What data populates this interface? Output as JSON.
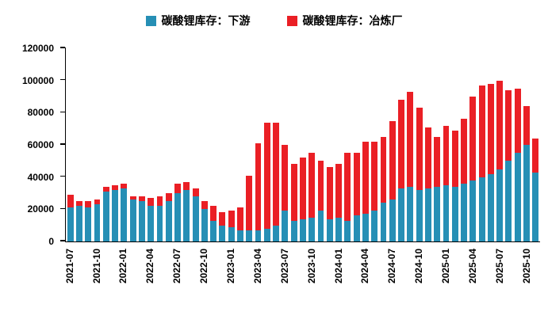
{
  "chart_data": {
    "type": "bar",
    "stacked": true,
    "title": "",
    "xlabel": "",
    "ylabel": "",
    "grid": false,
    "legend_position": "top",
    "ylim": [
      0,
      120000
    ],
    "yticks": [
      0,
      20000,
      40000,
      60000,
      80000,
      100000,
      120000
    ],
    "label_every": 3,
    "categories": [
      "2021-07",
      "2021-08",
      "2021-09",
      "2021-10",
      "2021-11",
      "2021-12",
      "2022-01",
      "2022-02",
      "2022-03",
      "2022-04",
      "2022-05",
      "2022-06",
      "2022-07",
      "2022-08",
      "2022-09",
      "2022-10",
      "2022-11",
      "2022-12",
      "2023-01",
      "2023-02",
      "2023-03",
      "2023-04",
      "2023-05",
      "2023-06",
      "2023-07",
      "2023-08",
      "2023-09",
      "2023-10",
      "2023-11",
      "2023-12",
      "2024-01",
      "2024-02",
      "2024-03",
      "2024-04",
      "2024-05",
      "2024-06",
      "2024-07",
      "2024-08",
      "2024-09",
      "2024-10",
      "2024-11",
      "2024-12",
      "2025-01",
      "2025-02",
      "2025-03",
      "2025-04",
      "2025-05",
      "2025-06",
      "2025-07",
      "2025-08",
      "2025-09",
      "2025-10",
      "2025-11"
    ],
    "series": [
      {
        "name": "碳酸锂库存：下游",
        "color": "#268fb5",
        "values": [
          21000,
          22000,
          21000,
          23000,
          31000,
          32000,
          33000,
          26000,
          25000,
          22000,
          22000,
          25000,
          30000,
          32000,
          28000,
          20000,
          13000,
          10000,
          9000,
          7000,
          7000,
          7000,
          8000,
          10000,
          19000,
          13000,
          14000,
          15000,
          19000,
          14000,
          15000,
          13000,
          16000,
          17000,
          19000,
          24000,
          26000,
          33000,
          34000,
          32000,
          33000,
          34000,
          35000,
          34000,
          36000,
          38000,
          40000,
          42000,
          45000,
          50000,
          55000,
          60000,
          43000
        ]
      },
      {
        "name": "碳酸锂库存：冶炼厂",
        "color": "#ea1f25",
        "values": [
          8000,
          3000,
          4000,
          3000,
          3000,
          3000,
          3000,
          2000,
          3000,
          5000,
          6000,
          5000,
          6000,
          5000,
          5000,
          5000,
          9000,
          8000,
          10000,
          14000,
          34000,
          54000,
          66000,
          64000,
          41000,
          35000,
          38000,
          40000,
          31000,
          32000,
          33000,
          42000,
          39000,
          45000,
          43000,
          41000,
          49000,
          55000,
          59000,
          51000,
          38000,
          31000,
          37000,
          35000,
          40000,
          52000,
          57000,
          56000,
          55000,
          44000,
          40000,
          24000,
          21000
        ]
      }
    ]
  }
}
